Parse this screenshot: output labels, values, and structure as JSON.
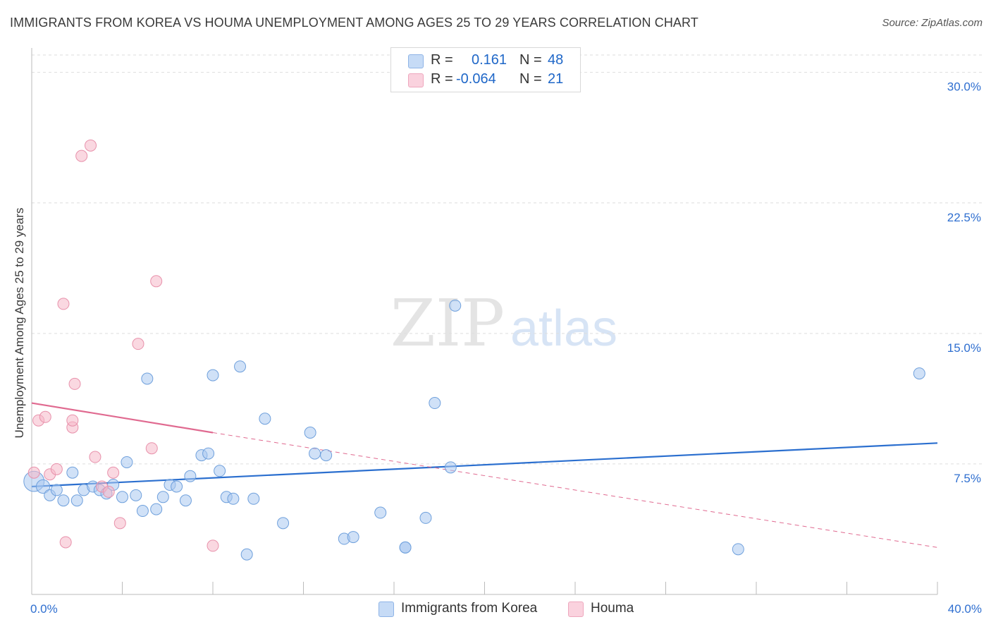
{
  "header": {
    "title": "IMMIGRANTS FROM KOREA VS HOUMA UNEMPLOYMENT AMONG AGES 25 TO 29 YEARS CORRELATION CHART",
    "source": "Source: ZipAtlas.com"
  },
  "watermark": {
    "zip": "ZIP",
    "atlas": "atlas"
  },
  "legend": {
    "rows": [
      {
        "r_label": "R =",
        "r_value": "0.161",
        "n_label": "N =",
        "n_value": "48",
        "color": "#a9c8f0"
      },
      {
        "r_label": "R =",
        "r_value": "-0.064",
        "n_label": "N =",
        "n_value": "21",
        "color": "#f5b8c9"
      }
    ]
  },
  "chart_data": {
    "type": "scatter",
    "title": "IMMIGRANTS FROM KOREA VS HOUMA UNEMPLOYMENT AMONG AGES 25 TO 29 YEARS CORRELATION CHART",
    "xlabel": "",
    "ylabel": "Unemployment Among Ages 25 to 29 years",
    "xlim": [
      0,
      40
    ],
    "ylim": [
      0,
      31
    ],
    "x_tick_labels": [
      "0.0%",
      "40.0%"
    ],
    "y_ticks": [
      7.5,
      15.0,
      22.5,
      30.0
    ],
    "y_tick_labels": [
      "7.5%",
      "15.0%",
      "22.5%",
      "30.0%"
    ],
    "grid": true,
    "legend_position": "top-center",
    "series": [
      {
        "name": "Immigrants from Korea",
        "color": "#a9c8f0",
        "stroke": "#6fa0dc",
        "trend": {
          "x": [
            0,
            40
          ],
          "y": [
            6.2,
            8.7
          ],
          "color": "#2b6fcf"
        },
        "points": [
          [
            0.1,
            6.5,
            1.8
          ],
          [
            0.5,
            6.2,
            1.2
          ],
          [
            0.8,
            5.7,
            1
          ],
          [
            1.1,
            6.0,
            1
          ],
          [
            1.4,
            5.4,
            1
          ],
          [
            1.8,
            7.0,
            1
          ],
          [
            2.0,
            5.4,
            1
          ],
          [
            2.3,
            6.0,
            1
          ],
          [
            2.7,
            6.2,
            1
          ],
          [
            3.0,
            6.0,
            1
          ],
          [
            3.3,
            5.8,
            1
          ],
          [
            3.6,
            6.3,
            1
          ],
          [
            4.0,
            5.6,
            1
          ],
          [
            4.2,
            7.6,
            1
          ],
          [
            4.6,
            5.7,
            1
          ],
          [
            4.9,
            4.8,
            1
          ],
          [
            5.1,
            12.4,
            1
          ],
          [
            5.5,
            4.9,
            1
          ],
          [
            5.8,
            5.6,
            1
          ],
          [
            6.1,
            6.3,
            1
          ],
          [
            6.4,
            6.2,
            1
          ],
          [
            6.8,
            5.4,
            1
          ],
          [
            7.0,
            6.8,
            1
          ],
          [
            7.5,
            8.0,
            1
          ],
          [
            7.8,
            8.1,
            1
          ],
          [
            8.0,
            12.6,
            1
          ],
          [
            8.3,
            7.1,
            1
          ],
          [
            8.6,
            5.6,
            1
          ],
          [
            8.9,
            5.5,
            1
          ],
          [
            9.2,
            13.1,
            1
          ],
          [
            9.5,
            2.3,
            1
          ],
          [
            9.8,
            5.5,
            1
          ],
          [
            10.3,
            10.1,
            1
          ],
          [
            11.1,
            4.1,
            1
          ],
          [
            12.3,
            9.3,
            1
          ],
          [
            12.5,
            8.1,
            1
          ],
          [
            13.0,
            8.0,
            1
          ],
          [
            13.8,
            3.2,
            1
          ],
          [
            14.2,
            3.3,
            1
          ],
          [
            15.4,
            4.7,
            1
          ],
          [
            16.5,
            2.7,
            1
          ],
          [
            17.4,
            4.4,
            1
          ],
          [
            17.8,
            11.0,
            1
          ],
          [
            18.5,
            7.3,
            1
          ],
          [
            18.7,
            16.6,
            1
          ],
          [
            31.2,
            2.6,
            1
          ],
          [
            39.2,
            12.7,
            1
          ],
          [
            16.5,
            2.7,
            1
          ]
        ]
      },
      {
        "name": "Houma",
        "color": "#f5b8c9",
        "stroke": "#e891ab",
        "trend": {
          "x": [
            0,
            8
          ],
          "y": [
            11.0,
            9.3
          ],
          "color": "#e06a90",
          "dashed_x": [
            8,
            40
          ],
          "dashed_y": [
            9.3,
            2.7
          ]
        },
        "points": [
          [
            0.1,
            7.0,
            1
          ],
          [
            0.3,
            10.0,
            1
          ],
          [
            0.6,
            10.2,
            1
          ],
          [
            0.8,
            6.9,
            1
          ],
          [
            1.1,
            7.2,
            1
          ],
          [
            1.4,
            16.7,
            1
          ],
          [
            1.5,
            3.0,
            1
          ],
          [
            1.8,
            9.6,
            1
          ],
          [
            1.8,
            10.0,
            1
          ],
          [
            1.9,
            12.1,
            1
          ],
          [
            2.2,
            25.2,
            1
          ],
          [
            2.6,
            25.8,
            1
          ],
          [
            2.8,
            7.9,
            1
          ],
          [
            3.1,
            6.2,
            1
          ],
          [
            3.4,
            5.9,
            1
          ],
          [
            3.6,
            7.0,
            1
          ],
          [
            3.9,
            4.1,
            1
          ],
          [
            4.7,
            14.4,
            1
          ],
          [
            5.3,
            8.4,
            1
          ],
          [
            5.5,
            18.0,
            1
          ],
          [
            8.0,
            2.8,
            1
          ]
        ]
      }
    ]
  }
}
